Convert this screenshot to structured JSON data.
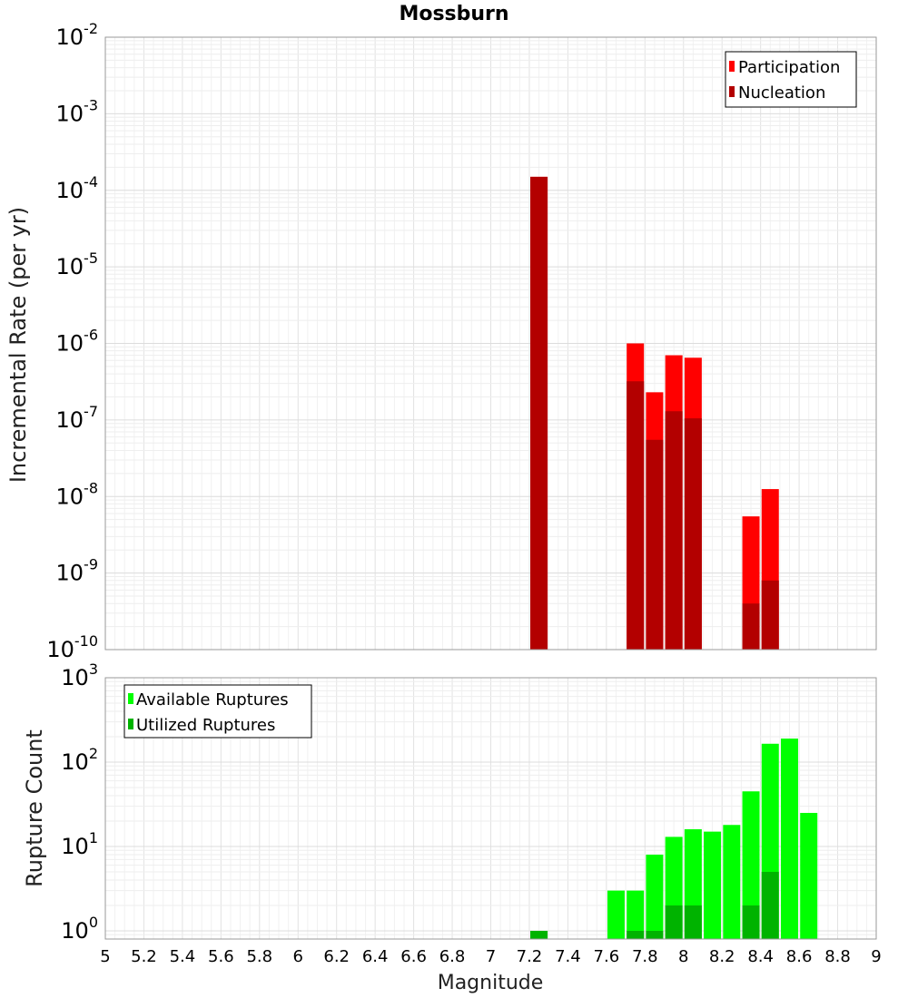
{
  "chart_data": [
    {
      "type": "bar",
      "title": "Mossburn",
      "xlabel": "",
      "ylabel": "Incremental Rate (per yr)",
      "y_scale": "log",
      "ylim": [
        1e-10,
        0.01
      ],
      "xlim": [
        5,
        9
      ],
      "y_ticks": [
        {
          "base": "10",
          "exp": "-10"
        },
        {
          "base": "10",
          "exp": "-9"
        },
        {
          "base": "10",
          "exp": "-8"
        },
        {
          "base": "10",
          "exp": "-7"
        },
        {
          "base": "10",
          "exp": "-6"
        },
        {
          "base": "10",
          "exp": "-5"
        },
        {
          "base": "10",
          "exp": "-4"
        },
        {
          "base": "10",
          "exp": "-3"
        },
        {
          "base": "10",
          "exp": "-2"
        }
      ],
      "grid": true,
      "legend_position": "top-right",
      "series": [
        {
          "name": "Participation",
          "color": "#ff0000",
          "x": [
            7.25,
            7.75,
            7.85,
            7.95,
            8.05,
            8.35,
            8.45
          ],
          "values": [
            0.00015,
            1e-06,
            2.3e-07,
            7e-07,
            6.5e-07,
            5.5e-09,
            1.25e-08
          ]
        },
        {
          "name": "Nucleation",
          "color": "#b30000",
          "x": [
            7.25,
            7.75,
            7.85,
            7.95,
            8.05,
            8.35,
            8.45
          ],
          "values": [
            0.00015,
            3.2e-07,
            5.5e-08,
            1.3e-07,
            1.05e-07,
            4e-10,
            8e-10
          ]
        }
      ]
    },
    {
      "type": "bar",
      "xlabel": "Magnitude",
      "ylabel": "Rupture Count",
      "y_scale": "log",
      "ylim": [
        0.8,
        1000
      ],
      "xlim": [
        5,
        9
      ],
      "y_ticks": [
        {
          "base": "10",
          "exp": "0"
        },
        {
          "base": "10",
          "exp": "1"
        },
        {
          "base": "10",
          "exp": "2"
        },
        {
          "base": "10",
          "exp": "3"
        }
      ],
      "x_ticks": [
        "5",
        "5.2",
        "5.4",
        "5.6",
        "5.8",
        "6",
        "6.2",
        "6.4",
        "6.6",
        "6.8",
        "7",
        "7.2",
        "7.4",
        "7.6",
        "7.8",
        "8",
        "8.2",
        "8.4",
        "8.6",
        "8.8",
        "9"
      ],
      "grid": true,
      "legend_position": "top-left",
      "series": [
        {
          "name": "Available Ruptures",
          "color": "#00ff00",
          "x": [
            7.25,
            7.65,
            7.75,
            7.85,
            7.95,
            8.05,
            8.15,
            8.25,
            8.35,
            8.45,
            8.55,
            8.65
          ],
          "values": [
            1,
            3,
            3,
            8,
            13,
            16,
            15,
            18,
            45,
            165,
            190,
            25
          ]
        },
        {
          "name": "Utilized Ruptures",
          "color": "#00b300",
          "x": [
            7.25,
            7.75,
            7.85,
            7.95,
            8.05,
            8.35,
            8.45
          ],
          "values": [
            1,
            1,
            1,
            2,
            2,
            2,
            5
          ]
        }
      ]
    }
  ]
}
